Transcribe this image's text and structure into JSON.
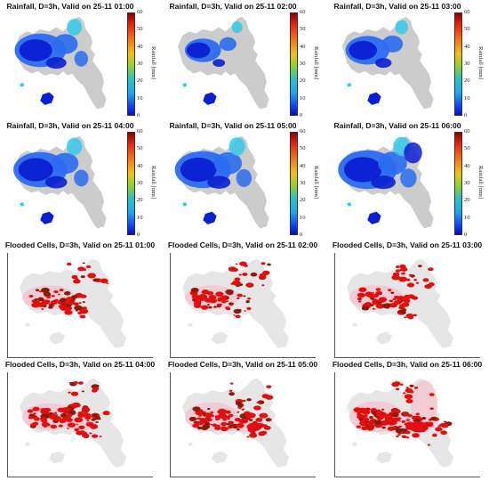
{
  "rainfall_panels": [
    {
      "title": "Rainfall, D=3h, Valid on 25-11 01:00",
      "intensity": 0.75
    },
    {
      "title": "Rainfall, D=3h, Valid on 25-11 02:00",
      "intensity": 0.45
    },
    {
      "title": "Rainfall, D=3h, Valid on 25-11 03:00",
      "intensity": 0.6
    },
    {
      "title": "Rainfall, D=3h, Valid on 25-11 04:00",
      "intensity": 0.8
    },
    {
      "title": "Rainfall, D=3h, Valid on 25-11 05:00",
      "intensity": 0.85
    },
    {
      "title": "Rainfall, D=3h, Valid on 25-11 06:00",
      "intensity": 0.9
    }
  ],
  "flood_panels": [
    {
      "title": "Flooded Cells, D=3h, Valid on 25-11 01:00",
      "extent": 0.3
    },
    {
      "title": "Flooded Cells, D=3h, Valid on 25-11 02:00",
      "extent": 0.32
    },
    {
      "title": "Flooded Cells, D=3h, Valid on 25-11 03:00",
      "extent": 0.34
    },
    {
      "title": "Flooded Cells, D=3h, Valid on 25-11 04:00",
      "extent": 0.55
    },
    {
      "title": "Flooded Cells, D=3h, Valid on 25-11 05:00",
      "extent": 0.7
    },
    {
      "title": "Flooded Cells, D=3h, Valid on 25-11 06:00",
      "extent": 0.9
    }
  ],
  "colorbar": {
    "label": "Rainfall [mm]",
    "ticks": [
      "60",
      "50",
      "40",
      "30",
      "20",
      "10",
      "0"
    ],
    "min": 0,
    "max": 60
  },
  "colors": {
    "land": "#cccccc",
    "flood_land": "#e6e6e6",
    "flood_red": "#e01010",
    "flood_dark": "#8a1a0a",
    "flood_halo": "#f3c6d0",
    "rain_high": "#0a1fd0",
    "rain_mid": "#2a6cf0",
    "rain_low": "#35c8e8"
  },
  "chart_data": {
    "type": "heatmap",
    "panels": [
      "Rainfall, D=3h, Valid on 25-11 01:00",
      "Rainfall, D=3h, Valid on 25-11 02:00",
      "Rainfall, D=3h, Valid on 25-11 03:00",
      "Rainfall, D=3h, Valid on 25-11 04:00",
      "Rainfall, D=3h, Valid on 25-11 05:00",
      "Rainfall, D=3h, Valid on 25-11 06:00",
      "Flooded Cells, D=3h, Valid on 25-11 01:00",
      "Flooded Cells, D=3h, Valid on 25-11 02:00",
      "Flooded Cells, D=3h, Valid on 25-11 03:00",
      "Flooded Cells, D=3h, Valid on 25-11 04:00",
      "Flooded Cells, D=3h, Valid on 25-11 05:00",
      "Flooded Cells, D=3h, Valid on 25-11 06:00"
    ],
    "colorbar_label": "Rainfall [mm]",
    "colorbar_range": [
      0,
      60
    ],
    "colorbar_ticks": [
      0,
      10,
      20,
      30,
      40,
      50,
      60
    ]
  }
}
